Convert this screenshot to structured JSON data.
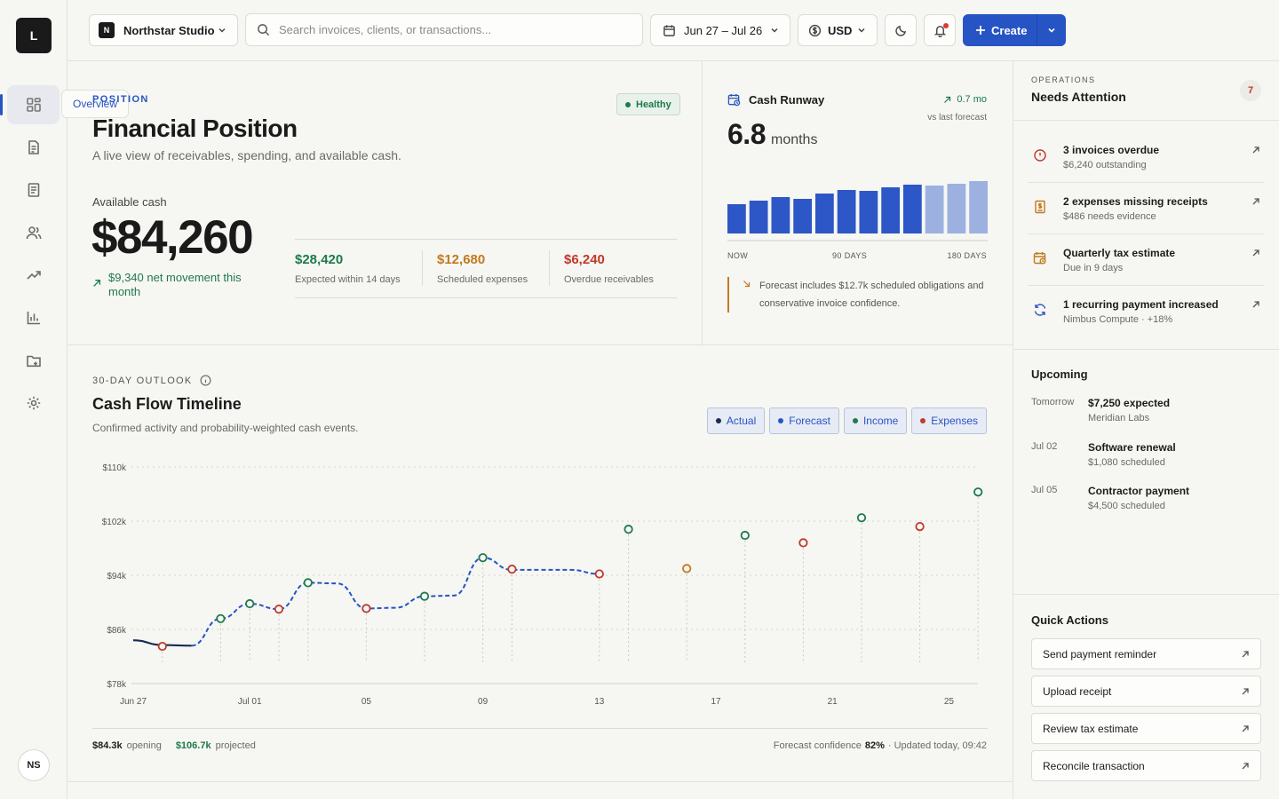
{
  "app": {
    "logo": "L",
    "avatar": "NS"
  },
  "nav": {
    "tooltip": "Overview",
    "items": [
      {
        "name": "overview",
        "icon": "dashboard-icon"
      },
      {
        "name": "invoices",
        "icon": "document-icon"
      },
      {
        "name": "receipts",
        "icon": "receipt-icon"
      },
      {
        "name": "clients",
        "icon": "users-icon"
      },
      {
        "name": "trends",
        "icon": "trend-up-icon"
      },
      {
        "name": "reports",
        "icon": "bar-chart-icon"
      },
      {
        "name": "files",
        "icon": "folder-icon"
      },
      {
        "name": "settings",
        "icon": "gear-icon"
      }
    ]
  },
  "topbar": {
    "workspace_badge": "N",
    "workspace": "Northstar Studio",
    "search_placeholder": "Search invoices, clients, or transactions...",
    "date_range": "Jun 27 – Jul 26",
    "currency": "USD",
    "create_label": "Create"
  },
  "position": {
    "eyebrow": "POSITION",
    "title": "Financial Position",
    "subtitle": "A live view of receivables, spending, and available cash.",
    "status": "Healthy",
    "cash_label": "Available cash",
    "cash_value": "$84,260",
    "movement": "$9,340 net movement this month",
    "stats": [
      {
        "value": "$28,420",
        "label": "Expected within 14 days",
        "color": "#1d7a4d"
      },
      {
        "value": "$12,680",
        "label": "Scheduled expenses",
        "color": "#c17a1e"
      },
      {
        "value": "$6,240",
        "label": "Overdue receivables",
        "color": "#c0392b"
      }
    ]
  },
  "runway": {
    "title": "Cash Runway",
    "delta": "0.7 mo",
    "delta_note": "vs last forecast",
    "value": "6.8",
    "unit": "months",
    "bars": [
      {
        "value": 33,
        "forecast": false
      },
      {
        "value": 37,
        "forecast": false
      },
      {
        "value": 41,
        "forecast": false
      },
      {
        "value": 39,
        "forecast": false
      },
      {
        "value": 45,
        "forecast": false
      },
      {
        "value": 49,
        "forecast": false
      },
      {
        "value": 48,
        "forecast": false
      },
      {
        "value": 52,
        "forecast": false
      },
      {
        "value": 55,
        "forecast": false
      },
      {
        "value": 54,
        "forecast": true
      },
      {
        "value": 56,
        "forecast": true
      },
      {
        "value": 59,
        "forecast": true
      }
    ],
    "axis": [
      "NOW",
      "90 DAYS",
      "180 DAYS"
    ],
    "note": "Forecast includes $12.7k scheduled obligations and conservative invoice confidence."
  },
  "cashflow": {
    "eyebrow": "30-DAY OUTLOOK",
    "title": "Cash Flow Timeline",
    "subtitle": "Confirmed activity and probability-weighted cash events.",
    "legend": [
      {
        "label": "Actual",
        "color": "#1a2a55"
      },
      {
        "label": "Forecast",
        "color": "#2754c5"
      },
      {
        "label": "Income",
        "color": "#1d7a4d"
      },
      {
        "label": "Expenses",
        "color": "#c0392b"
      }
    ],
    "footer_opening_value": "$84.3k",
    "footer_opening_label": "opening",
    "footer_projected_value": "$106.7k",
    "footer_projected_label": "projected",
    "footer_confidence_label": "Forecast confidence",
    "footer_confidence_value": "82%",
    "footer_updated": "· Updated today, 09:42"
  },
  "chart_data": {
    "type": "line",
    "yticks": [
      "$110k",
      "$102k",
      "$94k",
      "$86k",
      "$78k"
    ],
    "ylim": [
      78,
      110
    ],
    "xticks": [
      {
        "day": 0,
        "label": "Jun 27"
      },
      {
        "day": 4,
        "label": "Jul 01"
      },
      {
        "day": 8,
        "label": "05"
      },
      {
        "day": 12,
        "label": "09"
      },
      {
        "day": 16,
        "label": "13"
      },
      {
        "day": 20,
        "label": "17"
      },
      {
        "day": 24,
        "label": "21"
      },
      {
        "day": 28,
        "label": "25"
      }
    ],
    "actual": [
      [
        0,
        84.4
      ],
      [
        1,
        83.7
      ],
      [
        2,
        83.6
      ]
    ],
    "forecast": [
      [
        2,
        83.6
      ],
      [
        3,
        87.6
      ],
      [
        4,
        89.8
      ],
      [
        5,
        89.0
      ],
      [
        6,
        92.9
      ],
      [
        7,
        92.8
      ],
      [
        8,
        89.1
      ],
      [
        9,
        89.2
      ],
      [
        10,
        90.9
      ],
      [
        11,
        91.0
      ],
      [
        12,
        96.6
      ],
      [
        13,
        94.8
      ],
      [
        14,
        94.8
      ],
      [
        15,
        94.8
      ],
      [
        16,
        94.2
      ]
    ],
    "events": [
      {
        "day": 1,
        "value": 83.5,
        "kind": "expense"
      },
      {
        "day": 3,
        "value": 87.6,
        "kind": "income"
      },
      {
        "day": 4,
        "value": 89.8,
        "kind": "income"
      },
      {
        "day": 5,
        "value": 89.0,
        "kind": "expense"
      },
      {
        "day": 6,
        "value": 92.9,
        "kind": "income"
      },
      {
        "day": 8,
        "value": 89.1,
        "kind": "expense"
      },
      {
        "day": 10,
        "value": 90.9,
        "kind": "income"
      },
      {
        "day": 12,
        "value": 96.6,
        "kind": "income"
      },
      {
        "day": 13,
        "value": 94.9,
        "kind": "expense"
      },
      {
        "day": 16,
        "value": 94.2,
        "kind": "expense"
      },
      {
        "day": 17,
        "value": 100.8,
        "kind": "income"
      },
      {
        "day": 19,
        "value": 95.0,
        "kind": "scheduled"
      },
      {
        "day": 21,
        "value": 99.9,
        "kind": "income"
      },
      {
        "day": 23,
        "value": 98.8,
        "kind": "expense"
      },
      {
        "day": 25,
        "value": 102.5,
        "kind": "income"
      },
      {
        "day": 27,
        "value": 101.2,
        "kind": "expense"
      },
      {
        "day": 29,
        "value": 106.3,
        "kind": "income"
      }
    ],
    "colors": {
      "actual": "#1a2a55",
      "forecast": "#2754c5",
      "income": "#1d7a4d",
      "expense": "#c0392b",
      "scheduled": "#c17a1e"
    }
  },
  "attention": {
    "eyebrow": "OPERATIONS",
    "title": "Needs Attention",
    "count": "7",
    "items": [
      {
        "icon": "alert-circle-icon",
        "title": "3 invoices overdue",
        "sub": "$6,240 outstanding",
        "color": "#c0392b"
      },
      {
        "icon": "receipt-dollar-icon",
        "title": "2 expenses missing receipts",
        "sub": "$486 needs evidence",
        "color": "#c17a1e"
      },
      {
        "icon": "calendar-clock-icon",
        "title": "Quarterly tax estimate",
        "sub": "Due in 9 days",
        "color": "#c17a1e"
      },
      {
        "icon": "refresh-icon",
        "title": "1 recurring payment increased",
        "sub": "Nimbus Compute · +18%",
        "color": "#2754c5"
      }
    ]
  },
  "upcoming": {
    "title": "Upcoming",
    "items": [
      {
        "date": "Tomorrow",
        "title": "$7,250 expected",
        "sub": "Meridian Labs"
      },
      {
        "date": "Jul 02",
        "title": "Software renewal",
        "sub": "$1,080 scheduled"
      },
      {
        "date": "Jul 05",
        "title": "Contractor payment",
        "sub": "$4,500 scheduled"
      }
    ]
  },
  "quick_actions": {
    "title": "Quick Actions",
    "items": [
      "Send payment reminder",
      "Upload receipt",
      "Review tax estimate",
      "Reconcile transaction"
    ]
  }
}
